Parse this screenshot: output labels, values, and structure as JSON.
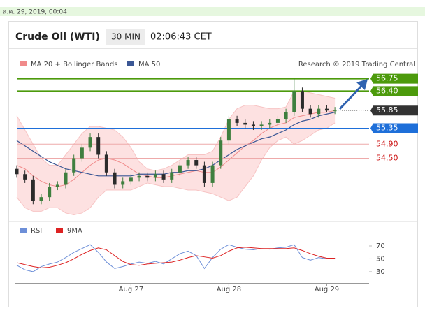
{
  "header": {
    "timestamp": "ส.ค. 29, 2019, 00:04",
    "title": "Crude Oil (WTI)",
    "interval": "30 MIN",
    "clock": "02:06:43 CET"
  },
  "chart_data": [
    {
      "type": "candlestick",
      "credit": "Research © 2019 Trading Central",
      "ylim": [
        52.85,
        57.0
      ],
      "up_color": "#3f7f3f",
      "down_color": "#2b2b2b",
      "open": [
        54.2,
        54.05,
        53.9,
        53.3,
        53.4,
        53.7,
        53.75,
        54.1,
        54.5,
        54.8,
        55.1,
        54.6,
        54.1,
        53.75,
        53.85,
        53.95,
        54.0,
        53.95,
        54.05,
        53.9,
        54.1,
        54.3,
        54.45,
        54.3,
        53.8,
        54.3,
        55.0,
        55.6,
        55.5,
        55.45,
        55.4,
        55.45,
        55.5,
        55.6,
        55.8,
        56.4,
        55.9,
        55.75,
        55.9,
        55.85
      ],
      "high": [
        54.3,
        54.15,
        54.0,
        53.5,
        53.8,
        53.85,
        54.2,
        54.6,
        54.9,
        55.2,
        55.2,
        54.7,
        54.2,
        53.95,
        54.05,
        54.1,
        54.1,
        54.15,
        54.15,
        54.2,
        54.4,
        54.55,
        54.55,
        54.4,
        54.4,
        55.1,
        55.7,
        55.7,
        55.6,
        55.55,
        55.55,
        55.6,
        55.7,
        55.9,
        56.75,
        56.5,
        56.0,
        56.0,
        56.0,
        55.95
      ],
      "low": [
        53.95,
        53.8,
        53.2,
        53.2,
        53.3,
        53.6,
        53.65,
        54.0,
        54.4,
        54.7,
        54.5,
        54.0,
        53.65,
        53.65,
        53.75,
        53.85,
        53.85,
        53.85,
        53.8,
        53.8,
        54.0,
        54.2,
        54.2,
        53.7,
        53.7,
        54.2,
        54.9,
        55.4,
        55.35,
        55.3,
        55.3,
        55.35,
        55.4,
        55.5,
        55.7,
        55.8,
        55.65,
        55.65,
        55.8,
        55.75
      ],
      "close": [
        54.05,
        53.9,
        53.3,
        53.4,
        53.7,
        53.75,
        54.1,
        54.5,
        54.8,
        55.1,
        54.6,
        54.1,
        53.75,
        53.85,
        53.95,
        54.0,
        53.95,
        54.05,
        53.9,
        54.1,
        54.3,
        54.45,
        54.3,
        53.8,
        54.3,
        55.0,
        55.6,
        55.5,
        55.45,
        55.4,
        55.45,
        55.5,
        55.6,
        55.8,
        56.4,
        55.9,
        55.75,
        55.9,
        55.85,
        55.85
      ],
      "bands": {
        "name": "MA 20 + Bollinger Bands",
        "color": "#f08a8a",
        "fill": "#fde1e1",
        "upper": [
          55.7,
          55.3,
          54.9,
          54.5,
          54.3,
          54.3,
          54.6,
          54.9,
          55.2,
          55.4,
          55.4,
          55.35,
          55.3,
          55.1,
          54.8,
          54.4,
          54.2,
          54.15,
          54.2,
          54.3,
          54.45,
          54.6,
          54.6,
          54.6,
          54.7,
          55.1,
          55.6,
          55.9,
          56.0,
          56.0,
          55.95,
          55.9,
          55.9,
          55.95,
          56.4,
          56.4,
          56.35,
          56.3,
          56.25,
          56.2
        ],
        "middle": [
          54.3,
          54.2,
          54.0,
          53.85,
          53.75,
          53.7,
          53.75,
          53.9,
          54.1,
          54.3,
          54.45,
          54.5,
          54.45,
          54.35,
          54.2,
          54.05,
          54.0,
          53.95,
          53.95,
          54.0,
          54.05,
          54.1,
          54.15,
          54.1,
          54.1,
          54.25,
          54.45,
          54.65,
          54.85,
          55.0,
          55.2,
          55.35,
          55.45,
          55.5,
          55.65,
          55.7,
          55.75,
          55.8,
          55.8,
          55.85
        ],
        "lower": [
          53.4,
          53.1,
          53.0,
          53.0,
          53.1,
          53.1,
          52.95,
          52.9,
          52.95,
          53.1,
          53.4,
          53.6,
          53.6,
          53.6,
          53.6,
          53.7,
          53.8,
          53.75,
          53.7,
          53.7,
          53.65,
          53.6,
          53.6,
          53.55,
          53.5,
          53.4,
          53.3,
          53.4,
          53.7,
          54.0,
          54.45,
          54.8,
          55.0,
          55.1,
          54.9,
          55.0,
          55.15,
          55.3,
          55.35,
          55.5
        ]
      },
      "ma": {
        "name": "MA 50",
        "color": "#3b5795",
        "values": [
          55.0,
          54.85,
          54.7,
          54.55,
          54.4,
          54.3,
          54.2,
          54.15,
          54.1,
          54.05,
          54.0,
          54.0,
          54.0,
          54.0,
          54.0,
          54.05,
          54.05,
          54.05,
          54.05,
          54.1,
          54.1,
          54.15,
          54.15,
          54.2,
          54.3,
          54.45,
          54.6,
          54.75,
          54.85,
          54.95,
          55.05,
          55.1,
          55.2,
          55.3,
          55.45,
          55.55,
          55.6,
          55.7,
          55.75,
          55.8
        ]
      },
      "levels": [
        {
          "value": 56.75,
          "color": "#4c9a0c",
          "style": "box"
        },
        {
          "value": 56.4,
          "label": "56.40",
          "color": "#4c9a0c",
          "style": "box"
        },
        {
          "value": 55.85,
          "color": "#333333",
          "style": "current"
        },
        {
          "value": 55.35,
          "color": "#1e6fd9",
          "style": "box"
        },
        {
          "value": 54.9,
          "label": "54.90",
          "color": "#eeaaaa",
          "text_color": "#cc1111",
          "style": "text"
        },
        {
          "value": 54.5,
          "label": "54.50",
          "color": "#eeaaaa",
          "text_color": "#cc1111",
          "style": "text"
        }
      ]
    },
    {
      "type": "line",
      "categories": [
        null,
        null,
        null,
        null,
        null,
        null,
        null,
        null,
        null,
        null,
        null,
        null,
        null,
        null,
        "Aug 27",
        null,
        null,
        null,
        null,
        null,
        null,
        null,
        null,
        null,
        null,
        null,
        "Aug 28",
        null,
        null,
        null,
        null,
        null,
        null,
        null,
        null,
        null,
        null,
        null,
        "Aug 29",
        null
      ],
      "ylim": [
        18,
        83
      ],
      "yticks": [
        30,
        50,
        70
      ],
      "series": [
        {
          "name": "RSI",
          "color": "#6d8fd8",
          "values": [
            40,
            33,
            30,
            38,
            42,
            45,
            52,
            60,
            66,
            72,
            60,
            45,
            35,
            38,
            42,
            45,
            43,
            46,
            42,
            50,
            58,
            62,
            55,
            35,
            52,
            65,
            72,
            68,
            65,
            64,
            66,
            65,
            67,
            68,
            72,
            52,
            48,
            52,
            50,
            51
          ]
        },
        {
          "name": "9MA",
          "color": "#dd2222",
          "values": [
            44,
            41,
            38,
            36,
            37,
            40,
            44,
            50,
            57,
            63,
            67,
            64,
            55,
            46,
            41,
            40,
            42,
            43,
            44,
            45,
            48,
            52,
            55,
            53,
            51,
            55,
            62,
            67,
            68,
            67,
            66,
            66,
            66,
            66,
            67,
            63,
            58,
            54,
            51,
            51
          ]
        }
      ]
    }
  ]
}
